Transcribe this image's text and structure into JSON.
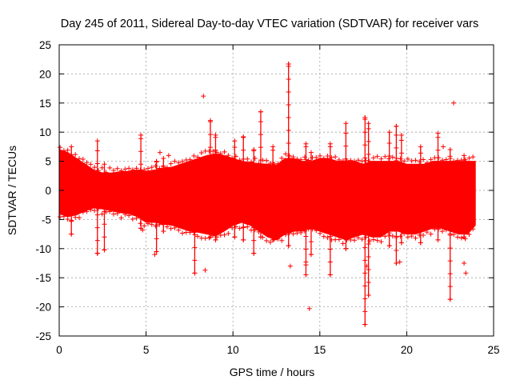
{
  "chart_data": {
    "type": "scatter",
    "title": "Day 245 of 2011, Sidereal Day-to-day VTEC variation (SDTVAR) for receiver vars",
    "xlabel": "GPS time / hours",
    "ylabel": "SDTVAR / TECUs",
    "xlim": [
      0,
      25
    ],
    "ylim": [
      -25,
      25
    ],
    "xticks": [
      "0",
      "5",
      "10",
      "15",
      "20",
      "25"
    ],
    "yticks": [
      "25",
      "20",
      "15",
      "10",
      "5",
      "0",
      "-5",
      "-10",
      "-15",
      "-20",
      "-25"
    ],
    "grid": true,
    "series_color": "#ff0000",
    "marker": "plus",
    "envelope": {
      "x": [
        0,
        0.5,
        1,
        1.5,
        2,
        2.5,
        3,
        3.5,
        4,
        4.5,
        5,
        5.5,
        6,
        6.5,
        7,
        7.5,
        8,
        8.5,
        9,
        9.5,
        10,
        10.5,
        11,
        11.5,
        12,
        12.5,
        13,
        13.5,
        14,
        14.5,
        15,
        15.5,
        16,
        16.5,
        17,
        17.5,
        18,
        18.5,
        19,
        19.5,
        20,
        20.5,
        21,
        21.5,
        22,
        22.5,
        23,
        23.5,
        23.95
      ],
      "upper": [
        7,
        6.5,
        5.5,
        4.5,
        3.5,
        3,
        3,
        3.2,
        3.3,
        3.5,
        3.3,
        3.5,
        3.8,
        4,
        4.5,
        5,
        5.5,
        6,
        6.3,
        6,
        5.5,
        5,
        4.8,
        4.6,
        4.5,
        4.3,
        5.5,
        5.5,
        5,
        5,
        5.5,
        5.5,
        5,
        5,
        5,
        4.5,
        5,
        5,
        5,
        5,
        4.5,
        4.5,
        4.5,
        5,
        5,
        5,
        5,
        5,
        5
      ],
      "lower": [
        -4,
        -4.5,
        -4.2,
        -3.5,
        -3,
        -3.2,
        -3.5,
        -3.8,
        -4,
        -4.5,
        -5.5,
        -5.5,
        -5.8,
        -6,
        -6.5,
        -7,
        -7.2,
        -7.5,
        -7.8,
        -7,
        -6,
        -5.5,
        -6,
        -7,
        -8,
        -8.5,
        -7.5,
        -7,
        -7,
        -6.5,
        -7,
        -7.5,
        -8,
        -8.5,
        -8,
        -7.5,
        -8,
        -8,
        -7,
        -7,
        -7.5,
        -7.5,
        -7,
        -6.5,
        -6.5,
        -7,
        -7.5,
        -7.5,
        -6
      ]
    },
    "spikes": [
      {
        "x": 0.7,
        "y1": -7.5,
        "y2": 7.5
      },
      {
        "x": 2.2,
        "y1": -10.8,
        "y2": 8.5
      },
      {
        "x": 2.6,
        "y1": -10.2,
        "y2": 4.5
      },
      {
        "x": 4.7,
        "y1": -6.5,
        "y2": 9.5
      },
      {
        "x": 5.6,
        "y1": -10.5,
        "y2": 5
      },
      {
        "x": 6.0,
        "y1": -7,
        "y2": 5.5
      },
      {
        "x": 7.8,
        "y1": -14.2,
        "y2": 5
      },
      {
        "x": 8.7,
        "y1": -8,
        "y2": 12
      },
      {
        "x": 9.0,
        "y1": -8.5,
        "y2": 9.5
      },
      {
        "x": 10.1,
        "y1": -8,
        "y2": 8.5
      },
      {
        "x": 10.6,
        "y1": -8.5,
        "y2": 9.2
      },
      {
        "x": 11.2,
        "y1": -10.8,
        "y2": 7
      },
      {
        "x": 11.6,
        "y1": -8,
        "y2": 13.5
      },
      {
        "x": 12.3,
        "y1": -8.5,
        "y2": 7.5
      },
      {
        "x": 13.2,
        "y1": -9.5,
        "y2": 21.7
      },
      {
        "x": 14.2,
        "y1": -14.5,
        "y2": 8
      },
      {
        "x": 14.5,
        "y1": -11,
        "y2": 6.5
      },
      {
        "x": 15.6,
        "y1": -14.5,
        "y2": 8
      },
      {
        "x": 16.5,
        "y1": -10,
        "y2": 11.5
      },
      {
        "x": 17.6,
        "y1": -23,
        "y2": 12.5
      },
      {
        "x": 17.8,
        "y1": -18,
        "y2": 11.5
      },
      {
        "x": 19.0,
        "y1": -9.5,
        "y2": 10
      },
      {
        "x": 19.4,
        "y1": -12.5,
        "y2": 11
      },
      {
        "x": 19.7,
        "y1": -9,
        "y2": 9.5
      },
      {
        "x": 20.8,
        "y1": -9,
        "y2": 7.5
      },
      {
        "x": 21.8,
        "y1": -8.5,
        "y2": 9.8
      },
      {
        "x": 22.5,
        "y1": -18.7,
        "y2": 7
      },
      {
        "x": 23.3,
        "y1": -8,
        "y2": 6
      }
    ],
    "outliers": [
      {
        "x": 13.2,
        "y": 21.7
      },
      {
        "x": 8.3,
        "y": 16.2
      },
      {
        "x": 22.7,
        "y": 15
      },
      {
        "x": 11.6,
        "y": 13.5
      },
      {
        "x": 17.6,
        "y": 12.5
      },
      {
        "x": 19.4,
        "y": 11
      },
      {
        "x": 5.8,
        "y": 6.5
      },
      {
        "x": 6.3,
        "y": 6
      },
      {
        "x": 22.1,
        "y": 7.5
      },
      {
        "x": 2.2,
        "y": -10.8
      },
      {
        "x": 2.6,
        "y": -10.2
      },
      {
        "x": 4.8,
        "y": -6.8
      },
      {
        "x": 5.5,
        "y": -11
      },
      {
        "x": 8.4,
        "y": -13.7
      },
      {
        "x": 13.3,
        "y": -13
      },
      {
        "x": 14.2,
        "y": -12.8
      },
      {
        "x": 14.4,
        "y": -20.3
      },
      {
        "x": 19.6,
        "y": -12.3
      },
      {
        "x": 23.3,
        "y": -12.5
      },
      {
        "x": 23.4,
        "y": -14.2
      },
      {
        "x": 17.6,
        "y": -23
      },
      {
        "x": 17.7,
        "y": -13
      }
    ]
  }
}
